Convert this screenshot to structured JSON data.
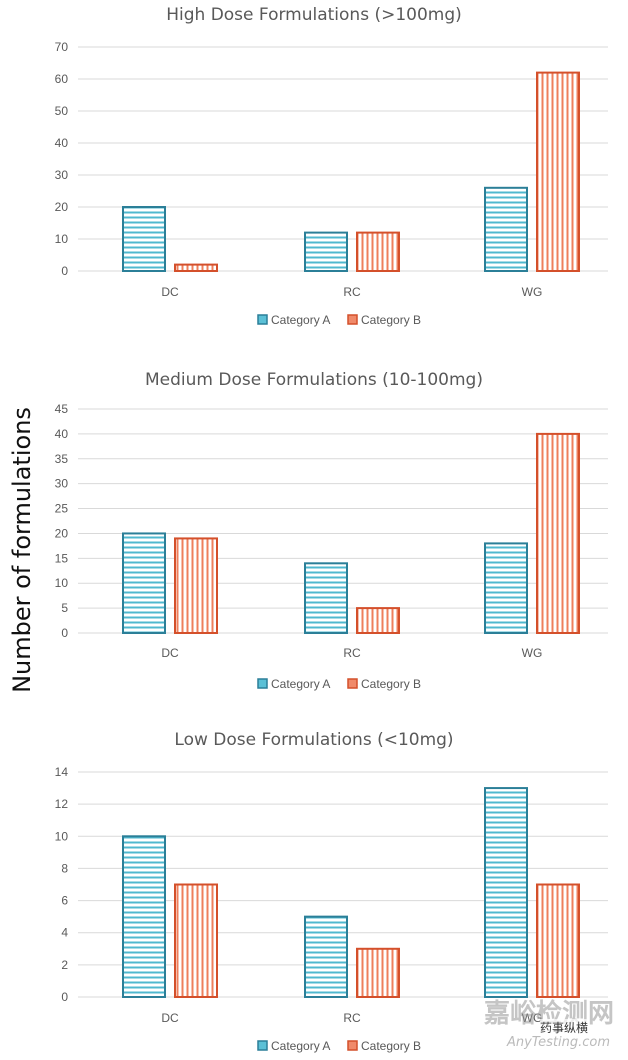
{
  "shared_ylabel": "Number of formulations",
  "watermark": {
    "primary": "嘉峪检测网",
    "secondary": "AnyTesting.com",
    "wechat": "药事纵横"
  },
  "colors": {
    "category_a": "#5bc0d6",
    "category_a_stroke": "#2b7f98",
    "category_b": "#f08a6a",
    "category_b_stroke": "#d4502b",
    "grid": "#d9d9d9",
    "text": "#595959"
  },
  "chart_data": [
    {
      "type": "bar",
      "title": "High Dose Formulations (>100mg)",
      "categories": [
        "DC",
        "RC",
        "WG"
      ],
      "series": [
        {
          "name": "Category A",
          "values": [
            20,
            12,
            26
          ]
        },
        {
          "name": "Category B",
          "values": [
            2,
            12,
            62
          ]
        }
      ],
      "ylim": [
        0,
        70
      ],
      "yticks": [
        0,
        10,
        20,
        30,
        40,
        50,
        60,
        70
      ],
      "grid": true,
      "legend": "bottom-center"
    },
    {
      "type": "bar",
      "title": "Medium Dose Formulations (10-100mg)",
      "categories": [
        "DC",
        "RC",
        "WG"
      ],
      "series": [
        {
          "name": "Category A",
          "values": [
            20,
            14,
            18
          ]
        },
        {
          "name": "Category B",
          "values": [
            19,
            5,
            40
          ]
        }
      ],
      "ylim": [
        0,
        45
      ],
      "yticks": [
        0,
        5,
        10,
        15,
        20,
        25,
        30,
        35,
        40,
        45
      ],
      "grid": true,
      "legend": "bottom-center"
    },
    {
      "type": "bar",
      "title": "Low Dose Formulations (<10mg)",
      "categories": [
        "DC",
        "RC",
        "WG"
      ],
      "series": [
        {
          "name": "Category A",
          "values": [
            10,
            5,
            13
          ]
        },
        {
          "name": "Category B",
          "values": [
            7,
            3,
            7
          ]
        }
      ],
      "ylim": [
        0,
        14
      ],
      "yticks": [
        0,
        2,
        4,
        6,
        8,
        10,
        12,
        14
      ],
      "grid": true,
      "legend": "bottom-center"
    }
  ]
}
